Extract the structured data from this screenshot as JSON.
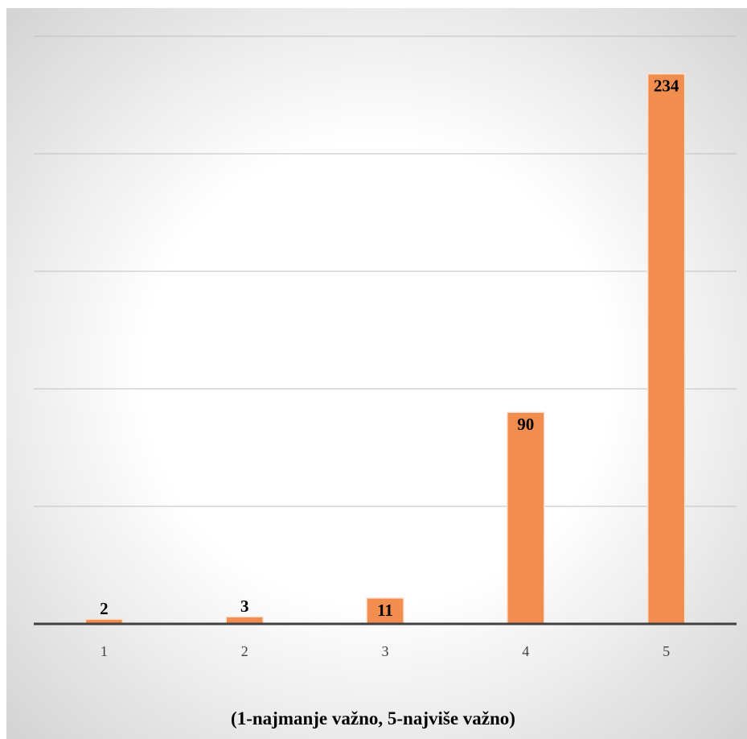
{
  "chart_data": {
    "type": "bar",
    "categories": [
      "1",
      "2",
      "3",
      "4",
      "5"
    ],
    "values": [
      2,
      3,
      11,
      90,
      234
    ],
    "xlabel": "(1-najmanje važno, 5-najviše važno)",
    "ylabel": "",
    "ylim": [
      0,
      250
    ],
    "grid": true,
    "data_labels": [
      "2",
      "3",
      "11",
      "90",
      "234"
    ],
    "colors": {
      "bar": "#f08d4f",
      "bar_edge": "#fbe3d2",
      "grid": "#bfbfbf",
      "axis": "#404040",
      "background_center": "#ffffff",
      "background_edge": "#d9d9d9"
    }
  }
}
